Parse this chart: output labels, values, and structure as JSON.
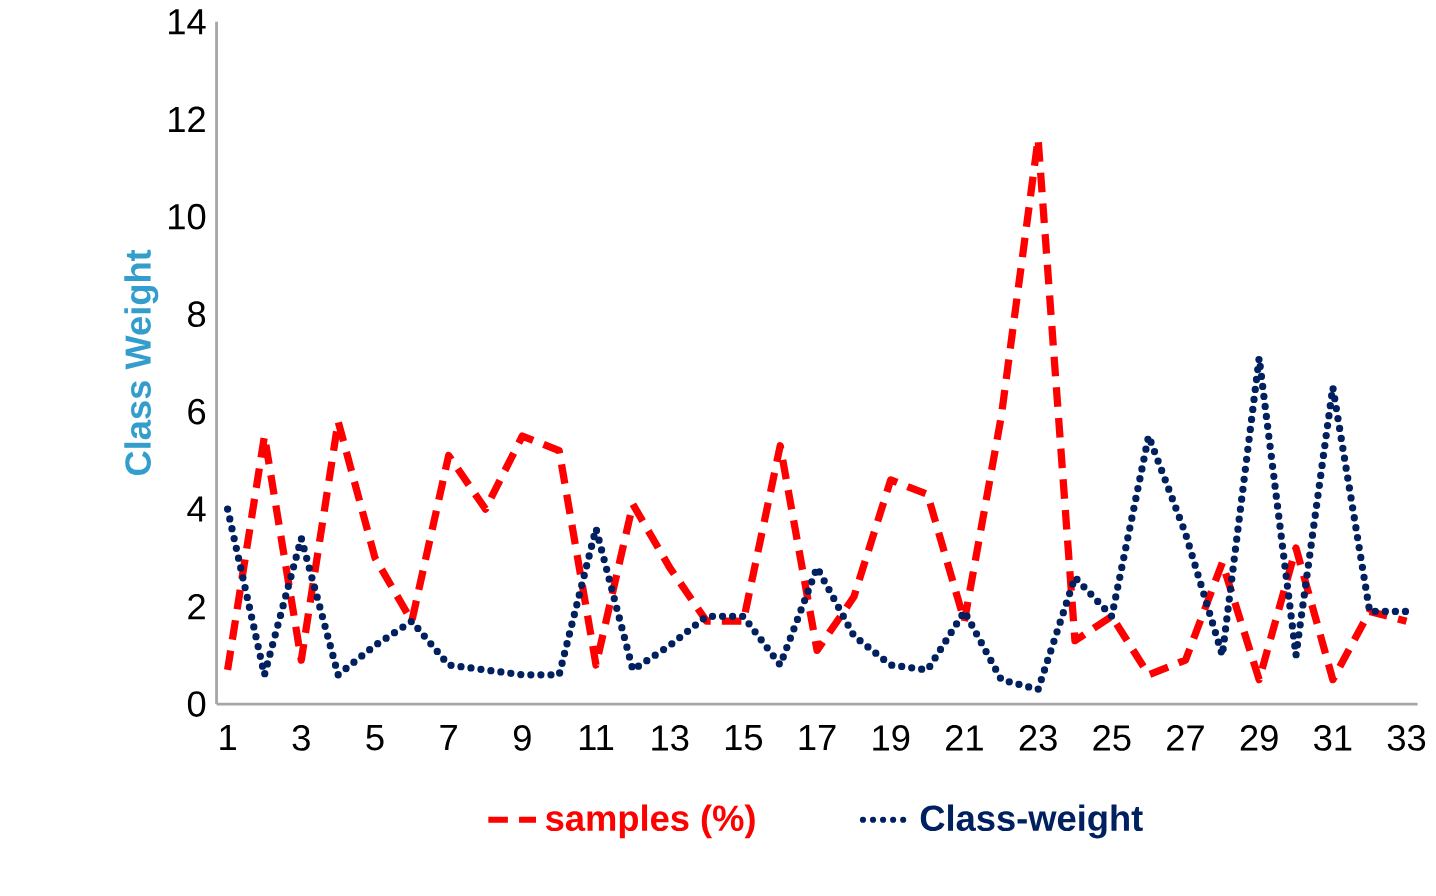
{
  "chart_data": {
    "type": "line",
    "ylabel": "Class Weight",
    "categories": [
      "1",
      null,
      "3",
      null,
      "5",
      null,
      "7",
      null,
      "9",
      null,
      "11",
      null,
      "13",
      null,
      "15",
      null,
      "17",
      null,
      "19",
      null,
      "21",
      null,
      "23",
      null,
      "25",
      null,
      "27",
      null,
      "29",
      null,
      "31",
      null,
      "33"
    ],
    "series": [
      {
        "name": "samples (%)",
        "color": "#ff0000",
        "line_style": "dashed",
        "values": [
          0.7,
          5.5,
          0.9,
          5.8,
          3.0,
          1.7,
          5.1,
          4.0,
          5.5,
          5.2,
          0.8,
          4.1,
          2.8,
          1.7,
          1.7,
          5.3,
          1.1,
          2.2,
          4.6,
          4.3,
          1.7,
          5.9,
          11.6,
          1.3,
          1.8,
          0.6,
          0.9,
          2.9,
          0.5,
          3.2,
          0.5,
          1.9,
          1.7
        ]
      },
      {
        "name": "Class-weight",
        "color": "#002060",
        "line_style": "dotted",
        "values": [
          4.0,
          0.6,
          3.4,
          0.6,
          1.2,
          1.7,
          0.8,
          0.7,
          0.6,
          0.6,
          3.6,
          0.7,
          1.2,
          1.8,
          1.8,
          0.8,
          2.8,
          1.4,
          0.8,
          0.7,
          1.9,
          0.5,
          0.3,
          2.6,
          1.8,
          5.5,
          3.5,
          1.0,
          7.1,
          1.0,
          6.5,
          1.9,
          1.9
        ]
      }
    ],
    "ylim": [
      0,
      14
    ],
    "yticks": [
      0,
      2,
      4,
      6,
      8,
      10,
      12,
      14
    ],
    "legend": "bottom",
    "grid": false
  }
}
